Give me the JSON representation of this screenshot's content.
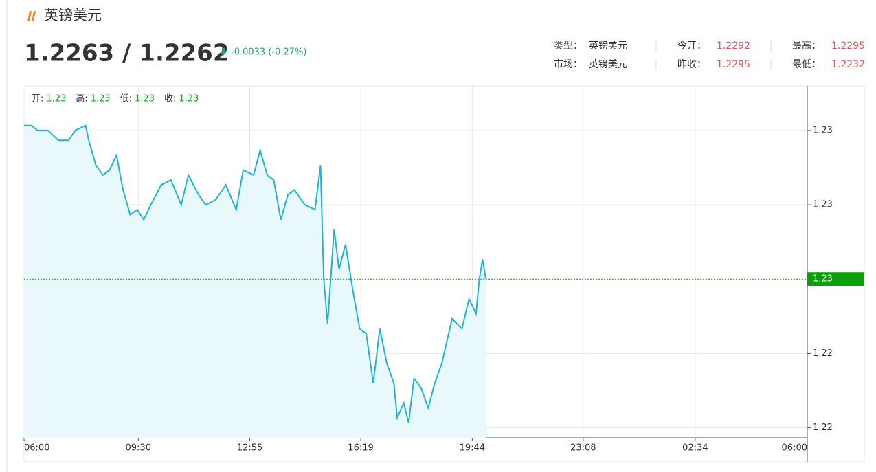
{
  "header": {
    "title": "英镑美元",
    "price": "1.2263 / 1.2262",
    "change": "-0.0033 (-0.27%)",
    "info": [
      [
        {
          "label": "类型：",
          "value": "英镑美元"
        },
        {
          "label": "今开：",
          "value": "1.2292"
        },
        {
          "label": "最高：",
          "value": "1.2295"
        }
      ],
      [
        {
          "label": "市场：",
          "value": "英镑美元"
        },
        {
          "label": "昨收：",
          "value": "1.2295"
        },
        {
          "label": "最低：",
          "value": "1.2232"
        }
      ]
    ]
  },
  "chart_data": {
    "type": "area",
    "ohlc": [
      {
        "label": "开:",
        "value": 1.23
      },
      {
        "label": "高:",
        "value": 1.23
      },
      {
        "label": "低:",
        "value": 1.23
      },
      {
        "label": "收:",
        "value": 1.23
      }
    ],
    "x": [
      0,
      13,
      25,
      44,
      63,
      82,
      94,
      113,
      119,
      132,
      145,
      157,
      170,
      182,
      195,
      208,
      220,
      233,
      252,
      270,
      289,
      302,
      321,
      334,
      352,
      371,
      390,
      403,
      422,
      434,
      447,
      459,
      472,
      485,
      497,
      516,
      535,
      545,
      551,
      558,
      570,
      579,
      591,
      604,
      617,
      629,
      642,
      654,
      667,
      680,
      686,
      698,
      707,
      717,
      730,
      743,
      755,
      768,
      787,
      805,
      818,
      831,
      837,
      843,
      849
    ],
    "values": [
      1.2294,
      1.2294,
      1.2293,
      1.2293,
      1.2291,
      1.2291,
      1.2293,
      1.2294,
      1.2291,
      1.2286,
      1.2284,
      1.2285,
      1.2288,
      1.2281,
      1.2276,
      1.2277,
      1.2275,
      1.2278,
      1.2282,
      1.2283,
      1.2278,
      1.2284,
      1.228,
      1.2278,
      1.2279,
      1.2282,
      1.2277,
      1.2285,
      1.2284,
      1.2289,
      1.2284,
      1.2283,
      1.2275,
      1.228,
      1.2281,
      1.2278,
      1.2277,
      1.2286,
      1.2263,
      1.2254,
      1.2273,
      1.2265,
      1.227,
      1.2261,
      1.2253,
      1.2252,
      1.2242,
      1.2253,
      1.2246,
      1.2242,
      1.2235,
      1.2238,
      1.2234,
      1.2243,
      1.2241,
      1.2237,
      1.2242,
      1.2246,
      1.2255,
      1.2253,
      1.2259,
      1.2256,
      1.2263,
      1.2267,
      1.2263
    ],
    "color": "#1fb5cf",
    "fill": "#e9f8fa",
    "xlim": [
      0,
      1440
    ],
    "xticks": [
      {
        "value": 0,
        "label": "06:00"
      },
      {
        "value": 210,
        "label": "09:30"
      },
      {
        "value": 415,
        "label": "12:55"
      },
      {
        "value": 619,
        "label": "16:19"
      },
      {
        "value": 824,
        "label": "19:44"
      },
      {
        "value": 1028,
        "label": "23:08"
      },
      {
        "value": 1234,
        "label": "02:34"
      },
      {
        "value": 1440,
        "label": "06:00"
      }
    ],
    "ylim": [
      1.2231,
      1.2302
    ],
    "yticks": [
      {
        "value": 1.2233,
        "label": "1.22"
      },
      {
        "value": 1.2248,
        "label": "1.22"
      },
      {
        "value": 1.2278,
        "label": "1.23"
      },
      {
        "value": 1.2293,
        "label": "1.23"
      }
    ],
    "current": {
      "value": 1.2263,
      "label": "1.23",
      "color": "#0aa00a"
    },
    "grid": true
  }
}
